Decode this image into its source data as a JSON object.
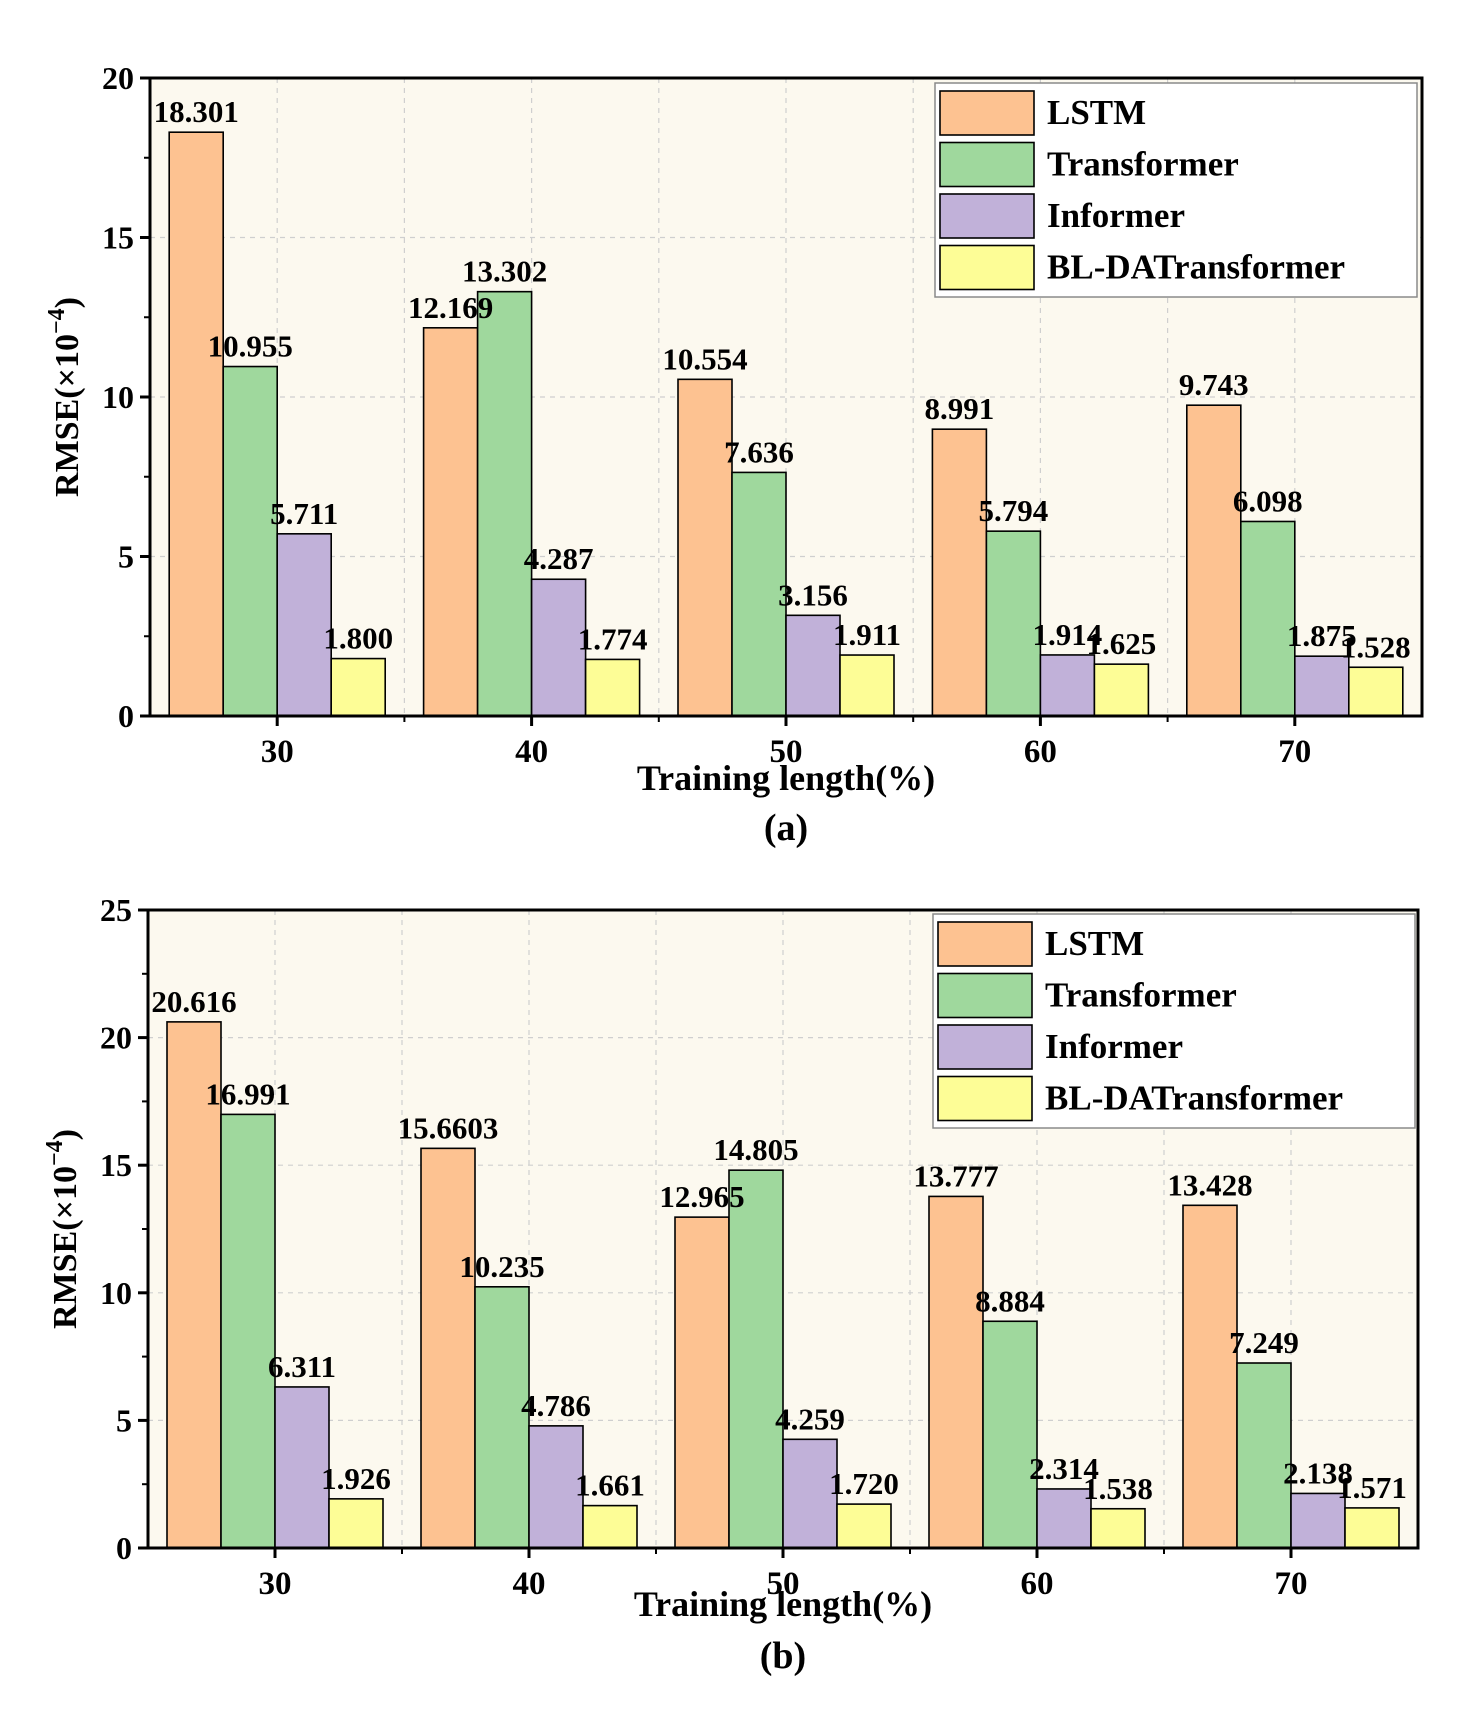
{
  "colors": {
    "plot_bg": "#fcf9ef",
    "grid": "#cfcfcf",
    "series": [
      "#fdc291",
      "#9fd89d",
      "#c1b1d9",
      "#fdfd96"
    ]
  },
  "chart_data": [
    {
      "type": "bar",
      "panel_label": "(a)",
      "title": "",
      "xlabel": "Training length(%)",
      "ylabel": "RMSE(×10",
      "ylabel_exp": "−4",
      "ylabel_close": ")",
      "ylim": [
        0,
        20
      ],
      "yticks": [
        0,
        5,
        10,
        15,
        20
      ],
      "grid": true,
      "legend_position": "top-right",
      "categories": [
        "30",
        "40",
        "50",
        "60",
        "70"
      ],
      "series": [
        {
          "name": "LSTM",
          "values": [
            18.301,
            12.169,
            10.554,
            8.991,
            9.743
          ],
          "labels": [
            "18.301",
            "12.169",
            "10.554",
            "8.991",
            "9.743"
          ]
        },
        {
          "name": "Transformer",
          "values": [
            10.955,
            13.302,
            7.636,
            5.794,
            6.098
          ],
          "labels": [
            "10.955",
            "13.302",
            "7.636",
            "5.794",
            "6.098"
          ]
        },
        {
          "name": "Informer",
          "values": [
            5.711,
            4.287,
            3.156,
            1.914,
            1.875
          ],
          "labels": [
            "5.711",
            "4.287",
            "3.156",
            "1.914",
            "1.875"
          ]
        },
        {
          "name": "BL-DATransformer",
          "values": [
            1.8,
            1.774,
            1.911,
            1.625,
            1.528
          ],
          "labels": [
            "1.800",
            "1.774",
            "1.911",
            "1.625",
            "1.528"
          ]
        }
      ]
    },
    {
      "type": "bar",
      "panel_label": "(b)",
      "title": "",
      "xlabel": "Training length(%)",
      "ylabel": "RMSE(×10",
      "ylabel_exp": "−4",
      "ylabel_close": ")",
      "ylim": [
        0,
        25
      ],
      "yticks": [
        0,
        5,
        10,
        15,
        20,
        25
      ],
      "grid": true,
      "legend_position": "top-right",
      "categories": [
        "30",
        "40",
        "50",
        "60",
        "70"
      ],
      "series": [
        {
          "name": "LSTM",
          "values": [
            20.616,
            15.6603,
            12.965,
            13.777,
            13.428
          ],
          "labels": [
            "20.616",
            "15.6603",
            "12.965",
            "13.777",
            "13.428"
          ]
        },
        {
          "name": "Transformer",
          "values": [
            16.991,
            10.235,
            14.805,
            8.884,
            7.249
          ],
          "labels": [
            "16.991",
            "10.235",
            "14.805",
            "8.884",
            "7.249"
          ]
        },
        {
          "name": "Informer",
          "values": [
            6.311,
            4.786,
            4.259,
            2.314,
            2.138
          ],
          "labels": [
            "6.311",
            "4.786",
            "4.259",
            "2.314",
            "2.138"
          ]
        },
        {
          "name": "BL-DATransformer",
          "values": [
            1.926,
            1.661,
            1.72,
            1.538,
            1.571
          ],
          "labels": [
            "1.926",
            "1.661",
            "1.720",
            "1.538",
            "1.571"
          ]
        }
      ]
    }
  ]
}
